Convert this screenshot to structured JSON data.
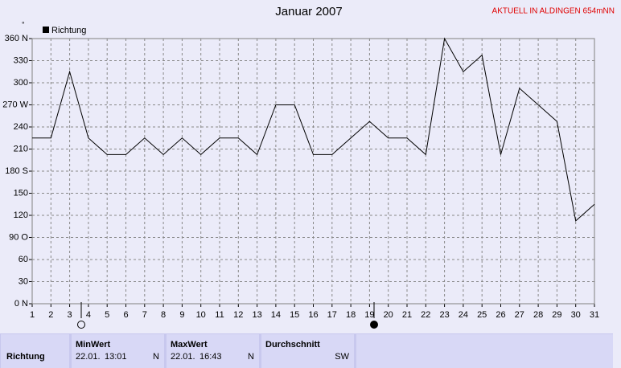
{
  "chart_data": {
    "type": "line",
    "title": "Januar 2007",
    "annotation": "AKTUELL IN ALDINGEN 654mNN",
    "y_unit": "°",
    "x": [
      1,
      2,
      3,
      4,
      5,
      6,
      7,
      8,
      9,
      10,
      11,
      12,
      13,
      14,
      15,
      16,
      17,
      18,
      19,
      20,
      21,
      22,
      23,
      24,
      25,
      26,
      27,
      28,
      29,
      30,
      31
    ],
    "series": [
      {
        "name": "Richtung",
        "color": "#000000",
        "values": [
          225,
          225,
          315,
          225,
          202.5,
          202.5,
          225,
          202.5,
          225,
          202.5,
          225,
          225,
          202.5,
          270,
          270,
          202.5,
          202.5,
          225,
          247.5,
          225,
          225,
          202.5,
          360,
          315,
          337.5,
          202.5,
          292.5,
          270,
          247.5,
          112.5,
          135
        ]
      }
    ],
    "xlim": [
      1,
      31
    ],
    "xticks": [
      1,
      2,
      3,
      4,
      5,
      6,
      7,
      8,
      9,
      10,
      11,
      12,
      13,
      14,
      15,
      16,
      17,
      18,
      19,
      20,
      21,
      22,
      23,
      24,
      25,
      26,
      27,
      28,
      29,
      30,
      31
    ],
    "ylim": [
      0,
      360
    ],
    "yticks": [
      {
        "value": 0,
        "label": "0 N"
      },
      30,
      60,
      {
        "value": 90,
        "label": "90 O"
      },
      120,
      150,
      {
        "value": 180,
        "label": "180 S"
      },
      210,
      240,
      {
        "value": 270,
        "label": "270 W"
      },
      300,
      330,
      {
        "value": 360,
        "label": "360 N"
      }
    ],
    "grid": true,
    "legend": "top-left"
  },
  "summary": {
    "row_label": "Richtung",
    "columns": [
      {
        "heading": "MinWert",
        "date": "22.01.",
        "time": "13:01",
        "direction": "N"
      },
      {
        "heading": "MaxWert",
        "date": "22.01.",
        "time": "16:43",
        "direction": "N"
      },
      {
        "heading": "Durchschnitt",
        "direction": "SW"
      }
    ]
  }
}
